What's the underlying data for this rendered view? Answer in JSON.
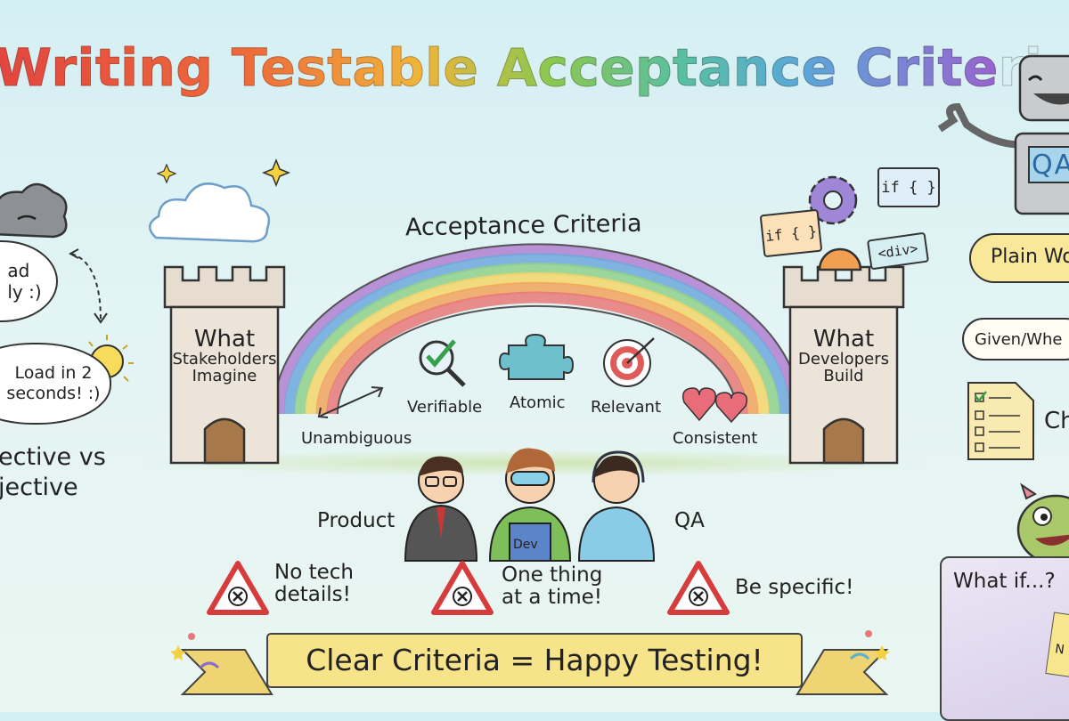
{
  "title": "Writing Testable Acceptance Criteria",
  "left_panel": {
    "bubble_vague": [
      "ad",
      "ly :)"
    ],
    "bubble_specific": [
      "Load in 2",
      "seconds! :)"
    ],
    "caption": [
      "ective vs",
      "jective"
    ]
  },
  "bridge": {
    "label": "Acceptance Criteria",
    "left_tower": {
      "line1": "What",
      "line2": "Stakeholders",
      "line3": "Imagine"
    },
    "right_tower": {
      "line1": "What",
      "line2": "Developers",
      "line3": "Build"
    },
    "qualities": [
      "Unambiguous",
      "Verifiable",
      "Atomic",
      "Relevant",
      "Consistent"
    ],
    "code_snippets": [
      "if { }",
      "if { }",
      "<div>"
    ]
  },
  "team": {
    "product": "Product",
    "dev": "Dev",
    "qa": "QA"
  },
  "warnings": [
    {
      "line1": "No tech",
      "line2": "details!"
    },
    {
      "line1": "One thing",
      "line2": "at a time!"
    },
    {
      "line1": "Be specific!",
      "line2": ""
    }
  ],
  "banner": "Clear Criteria = Happy Testing!",
  "right_panel": {
    "robot_badge": "QA",
    "plain_words": "Plain Wo",
    "given_when": "Given/Whe",
    "checklist": "Ch",
    "what_if": "What if...?",
    "note": "N"
  },
  "colors": {
    "rainbow": [
      "#b07fd0",
      "#6fa8dc",
      "#8fd08a",
      "#f4d56a",
      "#f2a25c",
      "#e87878"
    ],
    "banner": "#f7e48a",
    "warning": "#d63c3c"
  }
}
